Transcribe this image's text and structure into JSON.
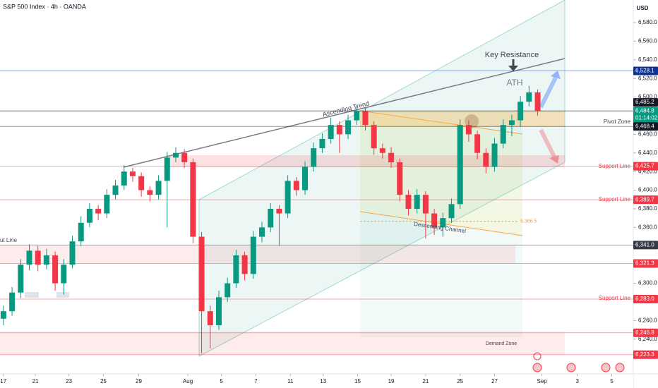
{
  "chart_data": {
    "type": "candlestick",
    "title": "S&P 500 Index · 4h · OANDA",
    "currency": "USD",
    "up_color": "#089981",
    "down_color": "#f23645",
    "candles": [
      [
        6262,
        6276,
        6255,
        6270
      ],
      [
        6270,
        6296,
        6265,
        6290
      ],
      [
        6290,
        6326,
        6284,
        6320
      ],
      [
        6320,
        6342,
        6314,
        6335
      ],
      [
        6335,
        6340,
        6313,
        6320
      ],
      [
        6320,
        6337,
        6315,
        6330
      ],
      [
        6330,
        6334,
        6292,
        6300
      ],
      [
        6300,
        6326,
        6288,
        6320
      ],
      [
        6320,
        6351,
        6316,
        6345
      ],
      [
        6345,
        6372,
        6340,
        6365
      ],
      [
        6365,
        6386,
        6360,
        6380
      ],
      [
        6380,
        6384,
        6368,
        6375
      ],
      [
        6375,
        6401,
        6370,
        6395
      ],
      [
        6395,
        6411,
        6390,
        6405
      ],
      [
        6405,
        6427,
        6400,
        6420
      ],
      [
        6420,
        6424,
        6409,
        6415
      ],
      [
        6415,
        6419,
        6393,
        6400
      ],
      [
        6400,
        6404,
        6388,
        6395
      ],
      [
        6395,
        6416,
        6390,
        6410
      ],
      [
        6410,
        6441,
        6360,
        6435
      ],
      [
        6435,
        6446,
        6430,
        6440
      ],
      [
        6440,
        6444,
        6424,
        6430
      ],
      [
        6430,
        6434,
        6343,
        6350
      ],
      [
        6350,
        6355,
        6225,
        6270
      ],
      [
        6270,
        6276,
        6230,
        6255
      ],
      [
        6255,
        6292,
        6250,
        6285
      ],
      [
        6285,
        6306,
        6280,
        6300
      ],
      [
        6300,
        6336,
        6295,
        6330
      ],
      [
        6330,
        6334,
        6303,
        6310
      ],
      [
        6310,
        6356,
        6305,
        6350
      ],
      [
        6350,
        6366,
        6344,
        6360
      ],
      [
        6360,
        6386,
        6355,
        6380
      ],
      [
        6380,
        6384,
        6340,
        6375
      ],
      [
        6375,
        6416,
        6370,
        6410
      ],
      [
        6410,
        6414,
        6394,
        6400
      ],
      [
        6400,
        6431,
        6395,
        6425
      ],
      [
        6425,
        6451,
        6420,
        6445
      ],
      [
        6445,
        6461,
        6440,
        6455
      ],
      [
        6455,
        6478,
        6450,
        6470
      ],
      [
        6470,
        6474,
        6440,
        6460
      ],
      [
        6460,
        6481,
        6455,
        6475
      ],
      [
        6475,
        6491,
        6470,
        6485
      ],
      [
        6485,
        6489,
        6464,
        6470
      ],
      [
        6470,
        6474,
        6438,
        6445
      ],
      [
        6445,
        6450,
        6434,
        6440
      ],
      [
        6440,
        6446,
        6424,
        6430
      ],
      [
        6430,
        6434,
        6388,
        6395
      ],
      [
        6395,
        6400,
        6373,
        6380
      ],
      [
        6380,
        6401,
        6375,
        6395
      ],
      [
        6395,
        6399,
        6348,
        6375
      ],
      [
        6375,
        6380,
        6352,
        6360
      ],
      [
        6360,
        6376,
        6350,
        6370
      ],
      [
        6370,
        6391,
        6365,
        6385
      ],
      [
        6385,
        6476,
        6380,
        6470
      ],
      [
        6470,
        6475,
        6452,
        6460
      ],
      [
        6460,
        6464,
        6433,
        6440
      ],
      [
        6440,
        6445,
        6418,
        6425
      ],
      [
        6425,
        6456,
        6420,
        6450
      ],
      [
        6450,
        6476,
        6445,
        6470
      ],
      [
        6470,
        6481,
        6458,
        6475
      ],
      [
        6475,
        6501,
        6468,
        6495
      ],
      [
        6495,
        6512,
        6490,
        6505
      ],
      [
        6505,
        6508,
        6480,
        6485
      ]
    ],
    "xlim": [
      -0.4,
      73.1
    ],
    "xticks": [
      {
        "value": 0,
        "label": "17"
      },
      {
        "value": 3.7,
        "label": "21"
      },
      {
        "value": 7.6,
        "label": "23"
      },
      {
        "value": 11.6,
        "label": "25"
      },
      {
        "value": 15.7,
        "label": "29"
      },
      {
        "value": 21.4,
        "label": "Aug"
      },
      {
        "value": 25.3,
        "label": "5"
      },
      {
        "value": 29.3,
        "label": "7"
      },
      {
        "value": 33.3,
        "label": "11"
      },
      {
        "value": 37.1,
        "label": "13"
      },
      {
        "value": 41.1,
        "label": "15"
      },
      {
        "value": 45,
        "label": "19"
      },
      {
        "value": 49,
        "label": "21"
      },
      {
        "value": 53,
        "label": "25"
      },
      {
        "value": 57,
        "label": "27"
      },
      {
        "value": 62.5,
        "label": "Sep"
      },
      {
        "value": 66.6,
        "label": "3"
      },
      {
        "value": 70.6,
        "label": "5"
      }
    ],
    "ylim": [
      6202.7,
      6604.2
    ],
    "yticks": [
      {
        "value": 6580,
        "label": "6,580.0"
      },
      {
        "value": 6560,
        "label": "6,560.0"
      },
      {
        "value": 6540,
        "label": "6,540.0"
      },
      {
        "value": 6520,
        "label": "6,520.0"
      },
      {
        "value": 6500,
        "label": "6,500.0"
      },
      {
        "value": 6460,
        "label": "6,460.0"
      },
      {
        "value": 6440,
        "label": "6,440.0"
      },
      {
        "value": 6420,
        "label": "6,420.0"
      },
      {
        "value": 6400,
        "label": "6,400.0"
      },
      {
        "value": 6380,
        "label": "6,380.0"
      },
      {
        "value": 6360,
        "label": "6,360.0"
      },
      {
        "value": 6300,
        "label": "6,300.0"
      },
      {
        "value": 6260,
        "label": "6,260.0"
      },
      {
        "value": 6240,
        "label": "6,240.0"
      }
    ],
    "levels": [
      {
        "value": 6528.1,
        "label": "6,528.1",
        "color": "#0c3299"
      },
      {
        "value": 6485.2,
        "label": "6,485.2",
        "color": "#131722"
      },
      {
        "value": 6484.8,
        "label": "6,484.8",
        "color": "#089981"
      },
      {
        "value": 6468.4,
        "label": "6,468.4",
        "color": "#131722"
      },
      {
        "value": 6425.7,
        "label": "6,425.7",
        "color": "#f23645"
      },
      {
        "value": 6389.7,
        "label": "6,389.7",
        "color": "#f23645"
      },
      {
        "value": 6341,
        "label": "6,341.0",
        "color": "#363a45"
      },
      {
        "value": 6321.3,
        "label": "6,321.3",
        "color": "#f23645"
      },
      {
        "value": 6283,
        "label": "6,283.0",
        "color": "#f23645"
      },
      {
        "value": 6246.8,
        "label": "6,246.8",
        "color": "#f23645"
      },
      {
        "value": 6223.3,
        "label": "6,223.3",
        "color": "#f23645"
      }
    ],
    "countdown": "01:14:02",
    "channel_mark": {
      "value": 6366.5,
      "label": "6,366.5"
    },
    "annotations": {
      "key_resistance": "Key Resistance",
      "ath": "ATH",
      "ascending_trend": "Ascending Trend",
      "pivot_zone": "Pivot Zone",
      "support_line_1": "Support Line",
      "support_line_2": "Support  Line",
      "support_line_3": "Support Line",
      "descending_channel": "Descending Channel",
      "demand_zone": "Demand Zone",
      "cut_line": "ut Line"
    }
  }
}
